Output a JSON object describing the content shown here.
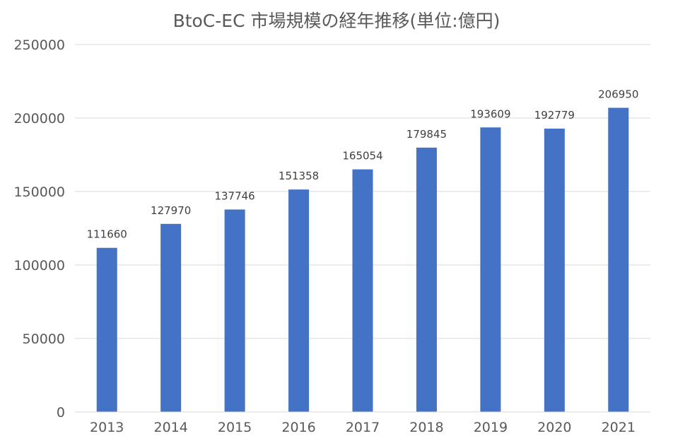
{
  "chart_data": {
    "type": "bar",
    "title": "BtoC-EC 市場規模の経年推移(単位:億円)",
    "xlabel": "",
    "ylabel": "",
    "categories": [
      "2013",
      "2014",
      "2015",
      "2016",
      "2017",
      "2018",
      "2019",
      "2020",
      "2021"
    ],
    "values": [
      111660,
      127970,
      137746,
      151358,
      165054,
      179845,
      193609,
      192779,
      206950
    ],
    "data_labels": [
      "111660",
      "127970",
      "137746",
      "151358",
      "165054",
      "179845",
      "193609",
      "192779",
      "206950"
    ],
    "ylim": [
      0,
      250000
    ],
    "yticks": [
      0,
      50000,
      100000,
      150000,
      200000,
      250000
    ],
    "ytick_labels": [
      "0",
      "50000",
      "100000",
      "150000",
      "200000",
      "250000"
    ],
    "grid": true,
    "legend": "none",
    "colors": {
      "bar": "#4472C4",
      "grid": "#D9D9D9",
      "text": "#595959",
      "data_label": "#404040"
    }
  }
}
